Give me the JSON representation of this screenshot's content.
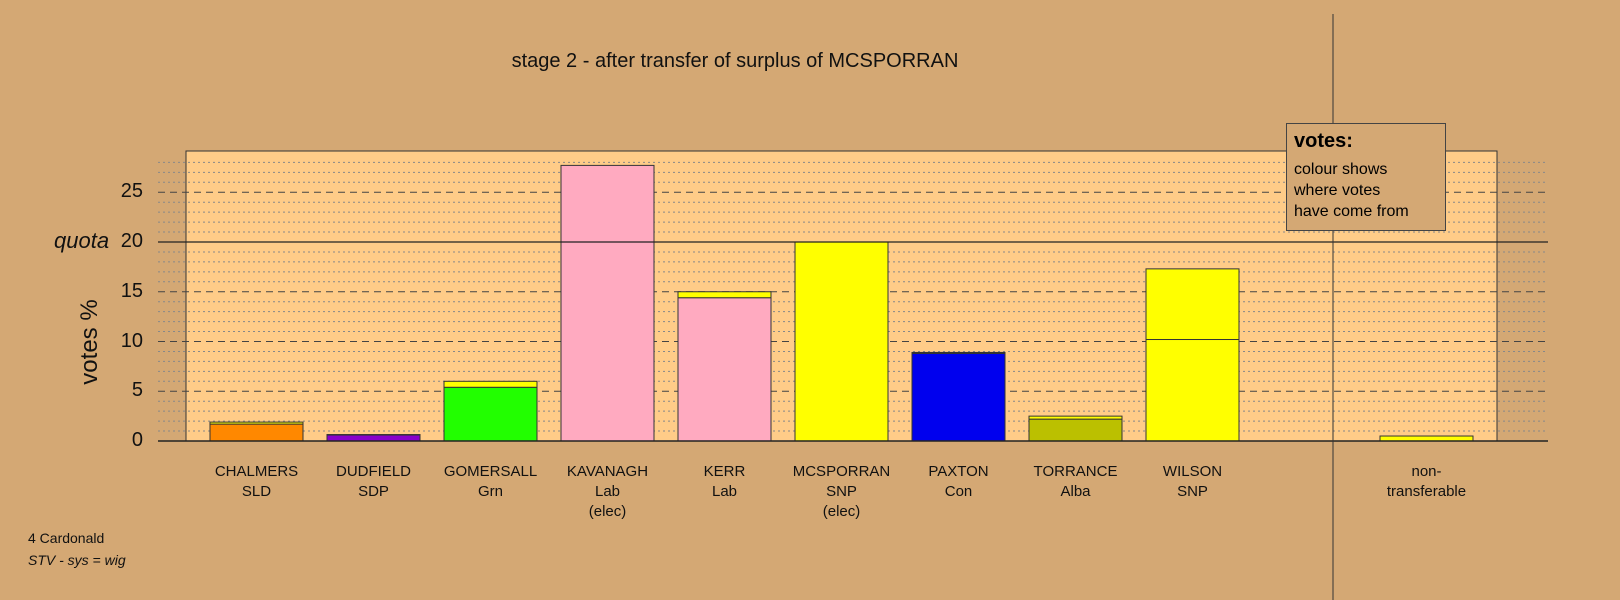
{
  "chart_data": {
    "type": "bar",
    "title": "stage 2 - after transfer of surplus of MCSPORRAN",
    "ylabel": "votes %",
    "ylim": [
      0,
      29
    ],
    "yticks": [
      0,
      5,
      10,
      15,
      20,
      25
    ],
    "quota": {
      "value": 20,
      "label": "quota"
    },
    "legend": {
      "title": "votes:",
      "lines": [
        "colour shows",
        "where votes",
        "have come from"
      ]
    },
    "colors": {
      "background": "#d4a874",
      "plot_area": "#ffcc88",
      "transfer": "#ffff00"
    },
    "bars": [
      {
        "name": "CHALMERS",
        "party": "SLD",
        "note": "",
        "segments": [
          {
            "value": 1.7,
            "color": "#ff8800"
          },
          {
            "value": 0.2,
            "color": "#ffff00"
          }
        ]
      },
      {
        "name": "DUDFIELD",
        "party": "SDP",
        "note": "",
        "segments": [
          {
            "value": 0.6,
            "color": "#8800cc"
          },
          {
            "value": 0.05,
            "color": "#ffff00"
          }
        ]
      },
      {
        "name": "GOMERSALL",
        "party": "Grn",
        "note": "",
        "segments": [
          {
            "value": 5.4,
            "color": "#22ff00"
          },
          {
            "value": 0.6,
            "color": "#ffff00"
          }
        ]
      },
      {
        "name": "KAVANAGH",
        "party": "Lab",
        "note": "(elec)",
        "segments": [
          {
            "value": 27.7,
            "color": "#ffaac0"
          }
        ]
      },
      {
        "name": "KERR",
        "party": "Lab",
        "note": "",
        "segments": [
          {
            "value": 14.4,
            "color": "#ffaac0"
          },
          {
            "value": 0.6,
            "color": "#ffff00"
          }
        ]
      },
      {
        "name": "MCSPORRAN",
        "party": "SNP",
        "note": "(elec)",
        "segments": [
          {
            "value": 20.0,
            "color": "#ffff00"
          }
        ]
      },
      {
        "name": "PAXTON",
        "party": "Con",
        "note": "",
        "segments": [
          {
            "value": 8.8,
            "color": "#0000ee"
          },
          {
            "value": 0.1,
            "color": "#ffff00"
          }
        ]
      },
      {
        "name": "TORRANCE",
        "party": "Alba",
        "note": "",
        "segments": [
          {
            "value": 2.2,
            "color": "#bbc000"
          },
          {
            "value": 0.3,
            "color": "#ffff00"
          }
        ]
      },
      {
        "name": "WILSON",
        "party": "SNP",
        "note": "",
        "segments": [
          {
            "value": 10.2,
            "color": "#ffff00"
          },
          {
            "value": 7.1,
            "color": "#ffff00"
          }
        ]
      }
    ],
    "nontransferable": {
      "label_lines": [
        "non-",
        "transferable"
      ],
      "value": 0.5,
      "color": "#ffff00"
    }
  },
  "footer": {
    "ward": "4 Cardonald",
    "system": "STV - sys = wig"
  }
}
